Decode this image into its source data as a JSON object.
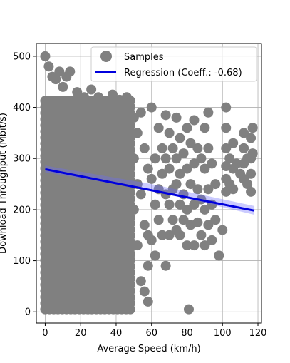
{
  "chart_data": {
    "type": "scatter",
    "title": "",
    "xlabel": "Average Speed (km/h)",
    "ylabel": "Download Throughput (Mbit/s)",
    "xlim": [
      -5,
      122
    ],
    "ylim": [
      -22,
      525
    ],
    "xticks": [
      0,
      20,
      40,
      60,
      80,
      100,
      120
    ],
    "yticks": [
      0,
      100,
      200,
      300,
      400,
      500
    ],
    "grid": true,
    "legend_position": "top-right",
    "series": [
      {
        "name": "Samples",
        "kind": "scatter",
        "color": "#808080",
        "dense_region": {
          "x_range": [
            0,
            48
          ],
          "y_range": [
            0,
            500
          ]
        },
        "points": [
          [
            0,
            500
          ],
          [
            2,
            480
          ],
          [
            4,
            460
          ],
          [
            6,
            455
          ],
          [
            8,
            470
          ],
          [
            10,
            440
          ],
          [
            12,
            460
          ],
          [
            14,
            470
          ],
          [
            18,
            430
          ],
          [
            22,
            420
          ],
          [
            26,
            435
          ],
          [
            30,
            420
          ],
          [
            34,
            410
          ],
          [
            38,
            425
          ],
          [
            42,
            415
          ],
          [
            46,
            420
          ],
          [
            50,
            380
          ],
          [
            50,
            300
          ],
          [
            50,
            200
          ],
          [
            52,
            350
          ],
          [
            52,
            250
          ],
          [
            52,
            130
          ],
          [
            54,
            390
          ],
          [
            54,
            230
          ],
          [
            54,
            60
          ],
          [
            56,
            320
          ],
          [
            56,
            170
          ],
          [
            56,
            40
          ],
          [
            58,
            280
          ],
          [
            58,
            150
          ],
          [
            58,
            90
          ],
          [
            58,
            20
          ],
          [
            60,
            400
          ],
          [
            60,
            260
          ],
          [
            60,
            140
          ],
          [
            62,
            300
          ],
          [
            62,
            210
          ],
          [
            62,
            110
          ],
          [
            64,
            360
          ],
          [
            64,
            240
          ],
          [
            64,
            180
          ],
          [
            66,
            320
          ],
          [
            66,
            270
          ],
          [
            66,
            150
          ],
          [
            68,
            385
          ],
          [
            68,
            300
          ],
          [
            68,
            230
          ],
          [
            68,
            90
          ],
          [
            70,
            350
          ],
          [
            70,
            280
          ],
          [
            70,
            210
          ],
          [
            70,
            150
          ],
          [
            72,
            320
          ],
          [
            72,
            240
          ],
          [
            72,
            180
          ],
          [
            74,
            380
          ],
          [
            74,
            300
          ],
          [
            74,
            250
          ],
          [
            74,
            160
          ],
          [
            76,
            340
          ],
          [
            76,
            270
          ],
          [
            76,
            210
          ],
          [
            76,
            150
          ],
          [
            78,
            310
          ],
          [
            78,
            230
          ],
          [
            78,
            180
          ],
          [
            80,
            360
          ],
          [
            80,
            280
          ],
          [
            80,
            200
          ],
          [
            80,
            130
          ],
          [
            81,
            5
          ],
          [
            82,
            330
          ],
          [
            82,
            250
          ],
          [
            82,
            170
          ],
          [
            84,
            375
          ],
          [
            84,
            290
          ],
          [
            84,
            210
          ],
          [
            84,
            130
          ],
          [
            86,
            320
          ],
          [
            86,
            240
          ],
          [
            86,
            175
          ],
          [
            88,
            300
          ],
          [
            88,
            220
          ],
          [
            88,
            150
          ],
          [
            90,
            360
          ],
          [
            90,
            280
          ],
          [
            90,
            200
          ],
          [
            90,
            130
          ],
          [
            92,
            390
          ],
          [
            92,
            320
          ],
          [
            92,
            240
          ],
          [
            92,
            170
          ],
          [
            94,
            290
          ],
          [
            94,
            210
          ],
          [
            94,
            140
          ],
          [
            96,
            250
          ],
          [
            96,
            180
          ],
          [
            98,
            110
          ],
          [
            100,
            160
          ],
          [
            102,
            400
          ],
          [
            102,
            360
          ],
          [
            102,
            320
          ],
          [
            102,
            285
          ],
          [
            102,
            260
          ],
          [
            102,
            235
          ],
          [
            104,
            300
          ],
          [
            104,
            250
          ],
          [
            106,
            330
          ],
          [
            106,
            280
          ],
          [
            106,
            240
          ],
          [
            108,
            290
          ],
          [
            110,
            270
          ],
          [
            112,
            350
          ],
          [
            112,
            320
          ],
          [
            112,
            290
          ],
          [
            112,
            260
          ],
          [
            114,
            300
          ],
          [
            114,
            250
          ],
          [
            116,
            340
          ],
          [
            116,
            300
          ],
          [
            116,
            270
          ],
          [
            116,
            235
          ],
          [
            117,
            360
          ],
          [
            117,
            310
          ]
        ]
      },
      {
        "name": "Regression (Coeff.: -0.68)",
        "kind": "line",
        "color": "#0000dd",
        "x": [
          0,
          118
        ],
        "y": [
          279,
          198
        ],
        "ci_band": [
          [
            0,
            273,
            286
          ],
          [
            60,
            238,
            250
          ],
          [
            118,
            190,
            207
          ]
        ]
      }
    ]
  }
}
